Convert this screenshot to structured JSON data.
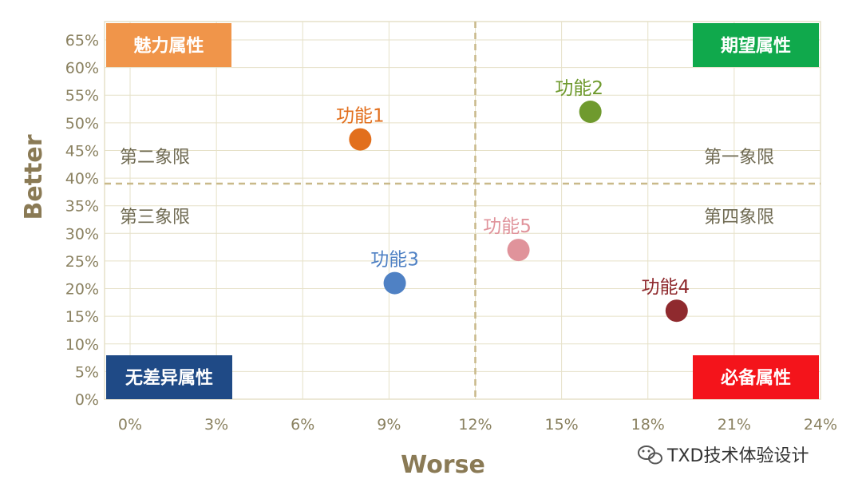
{
  "chart_data": {
    "type": "scatter",
    "xlabel": "Worse",
    "ylabel": "Better",
    "x_ticks": [
      "0%",
      "3%",
      "6%",
      "9%",
      "12%",
      "15%",
      "18%",
      "21%",
      "24%"
    ],
    "y_ticks": [
      "0%",
      "5%",
      "10%",
      "15%",
      "20%",
      "25%",
      "30%",
      "35%",
      "40%",
      "45%",
      "50%",
      "55%",
      "60%",
      "65%"
    ],
    "points": [
      {
        "label": "功能1",
        "x": 8.0,
        "y": 47,
        "color": "#e26f1d"
      },
      {
        "label": "功能2",
        "x": 16.0,
        "y": 52,
        "color": "#6f9a2e"
      },
      {
        "label": "功能3",
        "x": 9.2,
        "y": 21,
        "color": "#4f81c4"
      },
      {
        "label": "功能4",
        "x": 19.0,
        "y": 16,
        "color": "#8f2a2e"
      },
      {
        "label": "功能5",
        "x": 13.5,
        "y": 27,
        "color": "#e0939b"
      }
    ],
    "quadrants": {
      "q1": "第一象限",
      "q2": "第二象限",
      "q3": "第三象限",
      "q4": "第四象限"
    },
    "corner_labels": {
      "top_left": {
        "text": "魅力属性",
        "color": "#f0954a"
      },
      "top_right": {
        "text": "期望属性",
        "color": "#10a94c"
      },
      "bottom_left": {
        "text": "无差异属性",
        "color": "#1f4a86"
      },
      "bottom_right": {
        "text": "必备属性",
        "color": "#f4141b"
      }
    },
    "divider_x": 12,
    "divider_y": 36,
    "grid": true
  },
  "watermark": "TXD技术体验设计",
  "colors": {
    "grid": "#e6e1c8",
    "divider": "#c9b98a",
    "tick_text": "#8a8160",
    "axis_title": "#8a7a55"
  }
}
